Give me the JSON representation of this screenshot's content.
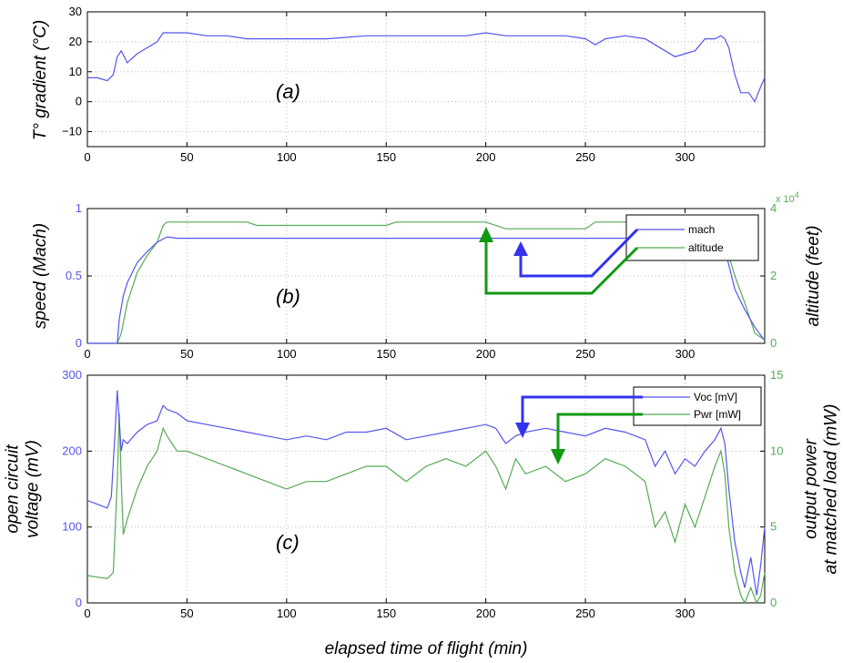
{
  "chart_data": [
    {
      "panel": "(a)",
      "type": "line",
      "ylabel": "T° gradient (°C)",
      "xlim": [
        0,
        340
      ],
      "ylim": [
        -15,
        30
      ],
      "xticks": [
        0,
        50,
        100,
        150,
        200,
        250,
        300
      ],
      "yticks": [
        -10,
        0,
        10,
        20,
        30
      ],
      "ytick_labels": [
        "−10",
        "0",
        "10",
        "20",
        "30"
      ],
      "grid": true,
      "series": [
        {
          "color": "#5555ee",
          "x": [
            0,
            5,
            10,
            13,
            15,
            17,
            20,
            25,
            30,
            35,
            38,
            42,
            50,
            60,
            70,
            80,
            90,
            100,
            120,
            140,
            160,
            180,
            190,
            200,
            210,
            220,
            230,
            240,
            250,
            255,
            260,
            270,
            280,
            285,
            290,
            295,
            300,
            305,
            310,
            315,
            318,
            320,
            322,
            325,
            328,
            332,
            335,
            338,
            340
          ],
          "y": [
            8,
            8,
            7,
            9,
            15,
            17,
            13,
            16,
            18,
            20,
            23,
            23,
            23,
            22,
            22,
            21,
            21,
            21,
            21,
            22,
            22,
            22,
            22,
            23,
            22,
            22,
            22,
            22,
            21,
            19,
            21,
            22,
            21,
            19,
            17,
            15,
            16,
            17,
            21,
            21,
            22,
            21,
            18,
            9,
            3,
            3,
            0,
            5,
            8
          ]
        }
      ]
    },
    {
      "panel": "(b)",
      "type": "line",
      "ylabel": "speed (Mach)",
      "y2label": "altitude (feet)",
      "y2_multiplier": "x 10^4",
      "xlim": [
        0,
        340
      ],
      "ylim": [
        0,
        1
      ],
      "y2lim": [
        0,
        4
      ],
      "xticks": [
        0,
        50,
        100,
        150,
        200,
        250,
        300
      ],
      "yticks": [
        0,
        0.5,
        1
      ],
      "y2ticks": [
        0,
        2,
        4
      ],
      "grid": true,
      "legend": {
        "entries": [
          "mach",
          "altitude"
        ],
        "placement": "top-right"
      },
      "series": [
        {
          "name": "mach",
          "axis": "left",
          "color": "#5555ee",
          "x": [
            0,
            15,
            16,
            18,
            20,
            25,
            30,
            35,
            40,
            45,
            60,
            80,
            100,
            120,
            140,
            160,
            180,
            200,
            220,
            240,
            260,
            280,
            300,
            315,
            320,
            325,
            330,
            335,
            340
          ],
          "y": [
            0,
            0,
            0.18,
            0.35,
            0.45,
            0.6,
            0.68,
            0.75,
            0.79,
            0.78,
            0.78,
            0.78,
            0.78,
            0.78,
            0.78,
            0.78,
            0.78,
            0.78,
            0.78,
            0.78,
            0.78,
            0.78,
            0.78,
            0.78,
            0.7,
            0.4,
            0.25,
            0.12,
            0.02
          ]
        },
        {
          "name": "altitude",
          "axis": "right",
          "color": "#55aa55",
          "x": [
            0,
            15,
            17,
            20,
            25,
            30,
            35,
            38,
            40,
            45,
            60,
            80,
            85,
            90,
            150,
            155,
            200,
            210,
            250,
            255,
            270,
            280,
            300,
            315,
            320,
            325,
            330,
            335,
            340
          ],
          "y": [
            0,
            0,
            0.3,
            1.2,
            2.1,
            2.6,
            3.0,
            3.5,
            3.6,
            3.6,
            3.6,
            3.6,
            3.5,
            3.5,
            3.5,
            3.6,
            3.6,
            3.4,
            3.4,
            3.6,
            3.6,
            3.6,
            3.6,
            3.6,
            3.0,
            2.0,
            1.2,
            0.3,
            0.1
          ]
        }
      ]
    },
    {
      "panel": "(c)",
      "type": "line",
      "ylabel": "open circuit voltage (mV)",
      "y2label": "output power at matched load (mW)",
      "xlim": [
        0,
        340
      ],
      "ylim": [
        0,
        300
      ],
      "y2lim": [
        0,
        15
      ],
      "xticks": [
        0,
        50,
        100,
        150,
        200,
        250,
        300
      ],
      "yticks": [
        0,
        100,
        200,
        300
      ],
      "y2ticks": [
        0,
        5,
        10,
        15
      ],
      "grid": true,
      "legend": {
        "entries": [
          "Voc [mV]",
          "Pwr [mW]"
        ],
        "placement": "top-right"
      },
      "series": [
        {
          "name": "Voc [mV]",
          "axis": "left",
          "color": "#5555ee",
          "x": [
            0,
            5,
            10,
            12,
            14,
            15,
            16,
            17,
            18,
            20,
            25,
            30,
            35,
            38,
            40,
            45,
            50,
            60,
            70,
            80,
            90,
            100,
            110,
            120,
            130,
            140,
            150,
            160,
            170,
            180,
            190,
            200,
            205,
            210,
            215,
            220,
            230,
            240,
            250,
            260,
            270,
            280,
            285,
            290,
            295,
            300,
            305,
            310,
            315,
            318,
            320,
            322,
            325,
            328,
            330,
            333,
            336,
            338,
            340
          ],
          "y": [
            135,
            130,
            125,
            140,
            230,
            280,
            240,
            200,
            215,
            210,
            225,
            235,
            240,
            260,
            255,
            250,
            240,
            235,
            230,
            225,
            220,
            215,
            220,
            215,
            225,
            225,
            230,
            215,
            220,
            225,
            230,
            235,
            230,
            210,
            220,
            225,
            230,
            225,
            220,
            230,
            225,
            215,
            180,
            200,
            170,
            190,
            180,
            200,
            215,
            230,
            210,
            150,
            80,
            40,
            20,
            60,
            10,
            50,
            100
          ]
        },
        {
          "name": "Pwr [mW]",
          "axis": "right",
          "color": "#55aa55",
          "x": [
            0,
            5,
            10,
            13,
            15,
            16,
            17,
            18,
            20,
            25,
            30,
            35,
            38,
            40,
            45,
            50,
            60,
            70,
            80,
            90,
            100,
            110,
            120,
            130,
            140,
            150,
            160,
            170,
            180,
            190,
            200,
            205,
            210,
            215,
            220,
            230,
            240,
            250,
            260,
            270,
            280,
            285,
            290,
            295,
            300,
            305,
            310,
            315,
            318,
            320,
            322,
            325,
            328,
            330,
            333,
            336,
            338,
            340
          ],
          "y": [
            1.8,
            1.7,
            1.6,
            2.0,
            8.0,
            12.5,
            8.0,
            4.5,
            5.5,
            7.5,
            9.0,
            10.0,
            11.5,
            11.0,
            10.0,
            10.0,
            9.5,
            9.0,
            8.5,
            8.0,
            7.5,
            8.0,
            8.0,
            8.5,
            9.0,
            9.0,
            8.0,
            9.0,
            9.5,
            9.0,
            10.0,
            9.0,
            7.5,
            9.5,
            8.5,
            9.0,
            8.0,
            8.5,
            9.5,
            9.0,
            8.0,
            5.0,
            6.0,
            4.0,
            6.5,
            5.0,
            7.0,
            9.0,
            10.0,
            8.5,
            5.0,
            2.0,
            0.5,
            0.0,
            1.0,
            0.0,
            0.5,
            2.0
          ]
        }
      ]
    }
  ],
  "xlabel": "elapsed time of flight (min)",
  "colors": {
    "blue": "#5555ee",
    "green": "#55aa55",
    "arrow_blue": "#3333ee",
    "arrow_green": "#119911"
  }
}
